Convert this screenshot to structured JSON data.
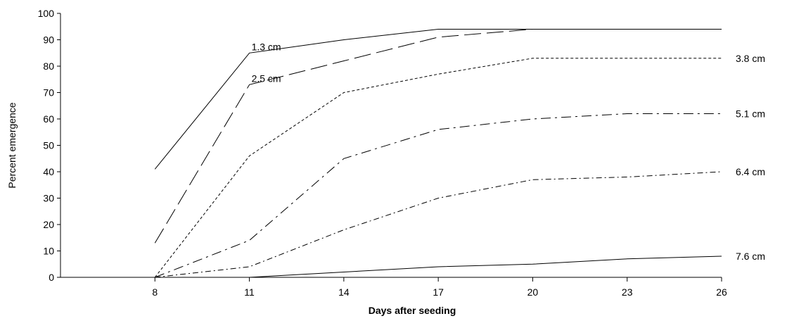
{
  "chart_data": {
    "type": "line",
    "title": "",
    "xlabel": "Days after seeding",
    "ylabel": "Percent emergence",
    "x": [
      8,
      11,
      14,
      17,
      20,
      23,
      26
    ],
    "x_tick_labels": [
      "8",
      "11",
      "14",
      "17",
      "20",
      "23",
      "26"
    ],
    "y_tick_labels": [
      "0",
      "10",
      "20",
      "30",
      "40",
      "50",
      "60",
      "70",
      "80",
      "90",
      "100"
    ],
    "xlim": [
      5,
      26
    ],
    "ylim": [
      0,
      100
    ],
    "grid": false,
    "legend": "none",
    "series": [
      {
        "name": "1.3 cm",
        "dash": "solid",
        "values": [
          41,
          85,
          90,
          94,
          94,
          94,
          94
        ]
      },
      {
        "name": "2.5 cm",
        "dash": "long-dash",
        "values": [
          13,
          73,
          82,
          91,
          94,
          94,
          94
        ]
      },
      {
        "name": "3.8 cm",
        "dash": "short-dash",
        "values": [
          0,
          46,
          70,
          77,
          83,
          83,
          83
        ]
      },
      {
        "name": "5.1 cm",
        "dash": "dash-dot",
        "values": [
          0,
          14,
          45,
          56,
          60,
          62,
          62
        ]
      },
      {
        "name": "6.4 cm",
        "dash": "dash-dot-small",
        "values": [
          0,
          4,
          18,
          30,
          37,
          38,
          40
        ]
      },
      {
        "name": "7.6 cm",
        "dash": "solid",
        "values": [
          0,
          0,
          2,
          4,
          5,
          7,
          8
        ]
      }
    ]
  }
}
